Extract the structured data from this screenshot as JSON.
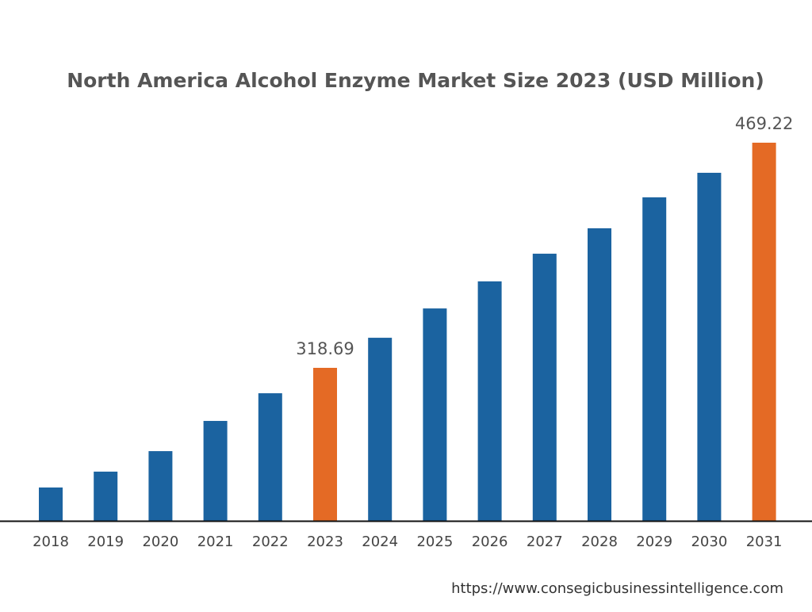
{
  "chart_data": {
    "type": "bar",
    "title": "North America Alcohol Enzyme Market Size 2023 (USD Million)",
    "xlabel": "",
    "ylabel": "",
    "categories": [
      "2018",
      "2019",
      "2020",
      "2021",
      "2022",
      "2023",
      "2024",
      "2025",
      "2026",
      "2027",
      "2028",
      "2029",
      "2030",
      "2031"
    ],
    "values": [
      238.7,
      249.3,
      263.0,
      283.2,
      301.7,
      318.69,
      338.8,
      358.4,
      376.5,
      395.0,
      412.0,
      432.7,
      449.1,
      469.22
    ],
    "data_labels": {
      "2023": "318.69",
      "2031": "469.22"
    },
    "highlighted": [
      "2023",
      "2031"
    ],
    "ylim": [
      216.4,
      469.22
    ],
    "grid": false,
    "y_axis_visible": false,
    "colors": {
      "bar": "#1b63a0",
      "highlight": "#e46a25",
      "text": "#555555",
      "axis": "#111111"
    }
  },
  "footer": {
    "source_url": "https://www.consegicbusinessintelligence.com"
  }
}
